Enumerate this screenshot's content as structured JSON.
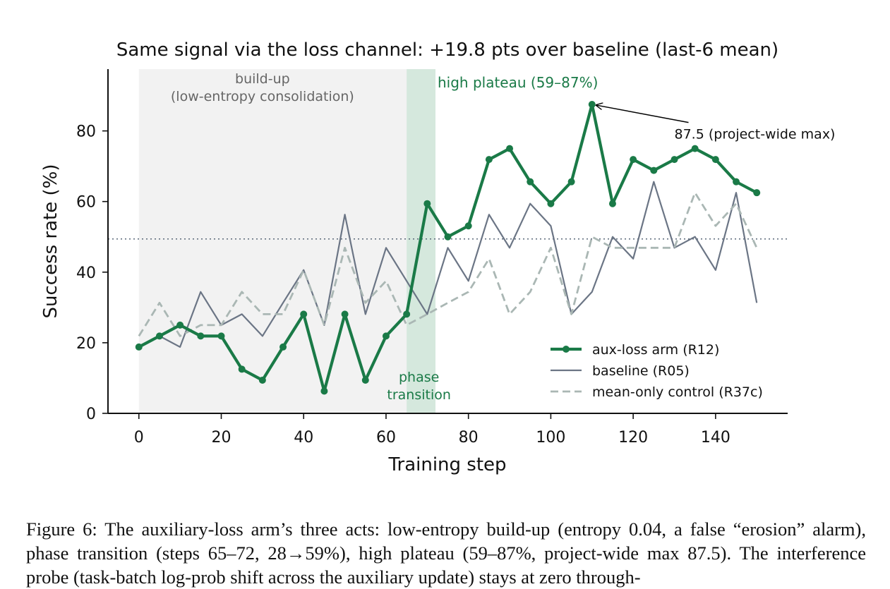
{
  "chart_data": {
    "type": "line",
    "title": "Same signal via the loss channel: +19.8 pts over baseline (last-6 mean)",
    "xlabel": "Training step",
    "ylabel": "Success rate (%)",
    "xlim": [
      -7.5,
      157.5
    ],
    "ylim": [
      0,
      97.5
    ],
    "xticks": [
      0,
      20,
      40,
      60,
      80,
      100,
      120,
      140
    ],
    "yticks": [
      0,
      20,
      40,
      60,
      80
    ],
    "grid": false,
    "legend_position": "lower-right",
    "x": [
      0,
      5,
      10,
      15,
      20,
      25,
      30,
      35,
      40,
      45,
      50,
      55,
      60,
      65,
      70,
      75,
      80,
      85,
      90,
      95,
      100,
      105,
      110,
      115,
      120,
      125,
      130,
      135,
      140,
      145,
      150
    ],
    "series": [
      {
        "name": "aux-loss arm (R12)",
        "color": "#1a7a47",
        "style": "solid-markers",
        "values": [
          18.8,
          21.9,
          25.0,
          21.9,
          21.9,
          12.5,
          9.4,
          18.8,
          28.1,
          6.3,
          28.1,
          9.4,
          21.9,
          28.1,
          59.4,
          50.0,
          53.1,
          71.9,
          75.0,
          65.6,
          59.4,
          65.6,
          87.5,
          59.4,
          71.9,
          68.8,
          71.9,
          75.0,
          71.9,
          65.6,
          62.5
        ]
      },
      {
        "name": "baseline (R05)",
        "color": "#6b7585",
        "style": "solid",
        "values": [
          18.8,
          21.9,
          18.8,
          34.4,
          25.0,
          28.1,
          21.9,
          31.3,
          40.6,
          25.0,
          56.3,
          28.1,
          46.9,
          null,
          28.1,
          46.9,
          37.5,
          56.3,
          46.9,
          59.4,
          53.1,
          28.1,
          34.4,
          50.0,
          43.8,
          65.6,
          46.9,
          50.0,
          40.6,
          62.5,
          31.3
        ]
      },
      {
        "name": "mean-only control (R37c)",
        "color": "#aab7b4",
        "style": "dashed",
        "values": [
          21.9,
          31.3,
          21.9,
          25.0,
          25.0,
          34.4,
          28.1,
          28.1,
          40.6,
          25.0,
          46.9,
          31.3,
          37.5,
          25.0,
          28.1,
          31.3,
          34.4,
          43.8,
          28.1,
          34.4,
          46.9,
          28.1,
          50.0,
          46.9,
          46.9,
          46.9,
          46.9,
          62.5,
          53.1,
          59.4,
          46.9
        ]
      }
    ],
    "reference_line": {
      "y": 49.4,
      "style": "dotted",
      "color": "#5a6878"
    },
    "shaded_regions": [
      {
        "x0": 0,
        "x1": 65,
        "color": "#f2f2f2",
        "label": "build-up\n(low-entropy consolidation)"
      },
      {
        "x0": 65,
        "x1": 72,
        "color": "#d5e8dd",
        "label": "phase\ntransition"
      }
    ],
    "annotations": [
      {
        "text": "high plateau (59–87%)",
        "color": "#1a7a47"
      },
      {
        "text": "87.5 (project-wide max)",
        "arrow_to": [
          110,
          87.5
        ],
        "text_anchor_data": [
          130,
          80
        ]
      }
    ]
  },
  "caption": "Figure 6: The auxiliary-loss arm’s three acts: low-entropy build-up (entropy 0.04, a false “erosion” alarm), phase transition (steps 65–72, 28→59%), high plateau (59–87%, project-wide max 87.5). The interference probe (task-batch log-prob shift across the auxiliary update) stays at zero through-"
}
